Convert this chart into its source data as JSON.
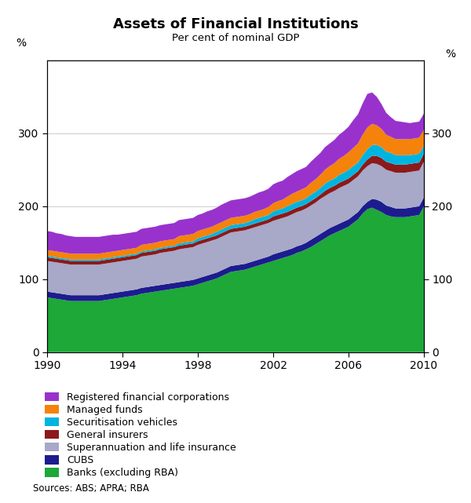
{
  "title": "Assets of Financial Institutions",
  "subtitle": "Per cent of nominal GDP",
  "ylabel_left": "%",
  "ylabel_right": "%",
  "source": "Sources: ABS; APRA; RBA",
  "xlim": [
    1990,
    2010
  ],
  "ylim": [
    0,
    400
  ],
  "yticks": [
    0,
    100,
    200,
    300
  ],
  "xticks": [
    1990,
    1994,
    1998,
    2002,
    2006,
    2010
  ],
  "colors": {
    "banks": "#1da838",
    "cubs": "#1c1c8f",
    "super": "#a8a8c8",
    "general": "#8b1a1a",
    "securitisation": "#00b4e0",
    "managed": "#f5820a",
    "registered": "#9932cc"
  },
  "legend": [
    {
      "label": "Registered financial corporations",
      "color": "#9932cc"
    },
    {
      "label": "Managed funds",
      "color": "#f5820a"
    },
    {
      "label": "Securitisation vehicles",
      "color": "#00b4e0"
    },
    {
      "label": "General insurers",
      "color": "#8b1a1a"
    },
    {
      "label": "Superannuation and life insurance",
      "color": "#a8a8c8"
    },
    {
      "label": "CUBS",
      "color": "#1c1c8f"
    },
    {
      "label": "Banks (excluding RBA)",
      "color": "#1da838"
    }
  ],
  "years": [
    1990.0,
    1990.25,
    1990.5,
    1990.75,
    1991.0,
    1991.25,
    1991.5,
    1991.75,
    1992.0,
    1992.25,
    1992.5,
    1992.75,
    1993.0,
    1993.25,
    1993.5,
    1993.75,
    1994.0,
    1994.25,
    1994.5,
    1994.75,
    1995.0,
    1995.25,
    1995.5,
    1995.75,
    1996.0,
    1996.25,
    1996.5,
    1996.75,
    1997.0,
    1997.25,
    1997.5,
    1997.75,
    1998.0,
    1998.25,
    1998.5,
    1998.75,
    1999.0,
    1999.25,
    1999.5,
    1999.75,
    2000.0,
    2000.25,
    2000.5,
    2000.75,
    2001.0,
    2001.25,
    2001.5,
    2001.75,
    2002.0,
    2002.25,
    2002.5,
    2002.75,
    2003.0,
    2003.25,
    2003.5,
    2003.75,
    2004.0,
    2004.25,
    2004.5,
    2004.75,
    2005.0,
    2005.25,
    2005.5,
    2005.75,
    2006.0,
    2006.25,
    2006.5,
    2006.75,
    2007.0,
    2007.25,
    2007.5,
    2007.75,
    2008.0,
    2008.25,
    2008.5,
    2008.75,
    2009.0,
    2009.25,
    2009.5,
    2009.75,
    2010.0
  ],
  "banks": [
    75,
    74,
    73,
    72,
    71,
    70,
    70,
    70,
    70,
    70,
    70,
    70,
    71,
    72,
    73,
    74,
    75,
    76,
    77,
    78,
    80,
    81,
    82,
    83,
    84,
    85,
    86,
    87,
    88,
    89,
    90,
    91,
    93,
    95,
    97,
    99,
    101,
    104,
    107,
    110,
    111,
    112,
    113,
    115,
    117,
    119,
    121,
    123,
    125,
    127,
    129,
    131,
    133,
    136,
    138,
    141,
    144,
    148,
    152,
    156,
    160,
    163,
    166,
    169,
    172,
    177,
    182,
    190,
    196,
    198,
    195,
    192,
    188,
    186,
    185,
    185,
    185,
    186,
    187,
    188,
    200
  ],
  "cubs": [
    8,
    8,
    8,
    8,
    8,
    8,
    8,
    8,
    8,
    8,
    8,
    8,
    8,
    8,
    8,
    8,
    8,
    8,
    8,
    8,
    8,
    8,
    8,
    8,
    8,
    8,
    8,
    8,
    8,
    8,
    8,
    8,
    8,
    8,
    8,
    8,
    8,
    8,
    8,
    8,
    8,
    8,
    8,
    8,
    8,
    8,
    8,
    8,
    9,
    9,
    9,
    9,
    9,
    9,
    9,
    9,
    10,
    10,
    10,
    10,
    10,
    10,
    10,
    10,
    10,
    10,
    10,
    10,
    10,
    12,
    14,
    14,
    13,
    13,
    12,
    12,
    12,
    12,
    12,
    12,
    12
  ],
  "super": [
    42,
    42,
    42,
    42,
    42,
    42,
    42,
    42,
    42,
    42,
    42,
    42,
    42,
    42,
    42,
    42,
    42,
    42,
    42,
    42,
    43,
    43,
    43,
    43,
    44,
    44,
    44,
    44,
    45,
    45,
    45,
    45,
    46,
    46,
    46,
    46,
    46,
    46,
    46,
    46,
    46,
    46,
    46,
    46,
    46,
    46,
    46,
    46,
    46,
    46,
    46,
    46,
    47,
    47,
    47,
    47,
    47,
    47,
    48,
    48,
    48,
    48,
    49,
    49,
    49,
    49,
    49,
    49,
    49,
    49,
    49,
    49,
    49,
    49,
    49,
    49,
    49,
    49,
    49,
    49,
    49
  ],
  "general": [
    5,
    5,
    5,
    5,
    5,
    5,
    5,
    5,
    5,
    5,
    5,
    5,
    5,
    5,
    5,
    5,
    5,
    5,
    5,
    5,
    5,
    5,
    5,
    5,
    5,
    5,
    5,
    5,
    5,
    5,
    5,
    5,
    5,
    5,
    5,
    5,
    5,
    5,
    5,
    5,
    5,
    5,
    5,
    5,
    5,
    5,
    5,
    5,
    6,
    6,
    6,
    6,
    6,
    6,
    6,
    6,
    6,
    6,
    6,
    7,
    7,
    7,
    7,
    7,
    7,
    7,
    7,
    8,
    9,
    10,
    11,
    11,
    11,
    11,
    11,
    11,
    11,
    11,
    11,
    11,
    11
  ],
  "securitisation": [
    2,
    2,
    2,
    2,
    2,
    2,
    2,
    2,
    2,
    2,
    2,
    2,
    2,
    2,
    2,
    2,
    2,
    2,
    2,
    2,
    2,
    2,
    2,
    2,
    2,
    2,
    2,
    2,
    3,
    3,
    3,
    3,
    4,
    4,
    4,
    4,
    5,
    5,
    5,
    5,
    5,
    5,
    5,
    5,
    6,
    6,
    6,
    6,
    7,
    7,
    7,
    8,
    8,
    8,
    8,
    8,
    9,
    9,
    9,
    10,
    10,
    10,
    11,
    11,
    12,
    12,
    12,
    13,
    14,
    15,
    15,
    15,
    14,
    14,
    13,
    13,
    13,
    12,
    12,
    12,
    11
  ],
  "managed": [
    8,
    8,
    8,
    8,
    8,
    8,
    8,
    8,
    8,
    8,
    8,
    8,
    8,
    8,
    8,
    8,
    8,
    8,
    8,
    8,
    9,
    9,
    9,
    9,
    9,
    9,
    9,
    9,
    10,
    10,
    10,
    10,
    10,
    10,
    10,
    10,
    10,
    10,
    10,
    10,
    10,
    10,
    10,
    10,
    10,
    10,
    10,
    11,
    11,
    12,
    12,
    13,
    14,
    14,
    15,
    15,
    16,
    17,
    18,
    19,
    20,
    21,
    22,
    23,
    24,
    25,
    26,
    28,
    30,
    29,
    27,
    25,
    23,
    22,
    22,
    22,
    22,
    22,
    22,
    22,
    22
  ],
  "registered": [
    26,
    26,
    25,
    25,
    24,
    24,
    23,
    23,
    23,
    23,
    23,
    23,
    23,
    23,
    23,
    22,
    22,
    22,
    22,
    22,
    22,
    22,
    22,
    22,
    22,
    22,
    22,
    22,
    22,
    22,
    22,
    22,
    22,
    22,
    23,
    23,
    23,
    24,
    24,
    24,
    24,
    24,
    24,
    24,
    24,
    25,
    25,
    25,
    26,
    26,
    26,
    27,
    27,
    28,
    28,
    28,
    29,
    30,
    30,
    31,
    31,
    32,
    33,
    34,
    35,
    38,
    40,
    43,
    46,
    43,
    39,
    34,
    30,
    27,
    25,
    24,
    23,
    22,
    22,
    22,
    22
  ]
}
